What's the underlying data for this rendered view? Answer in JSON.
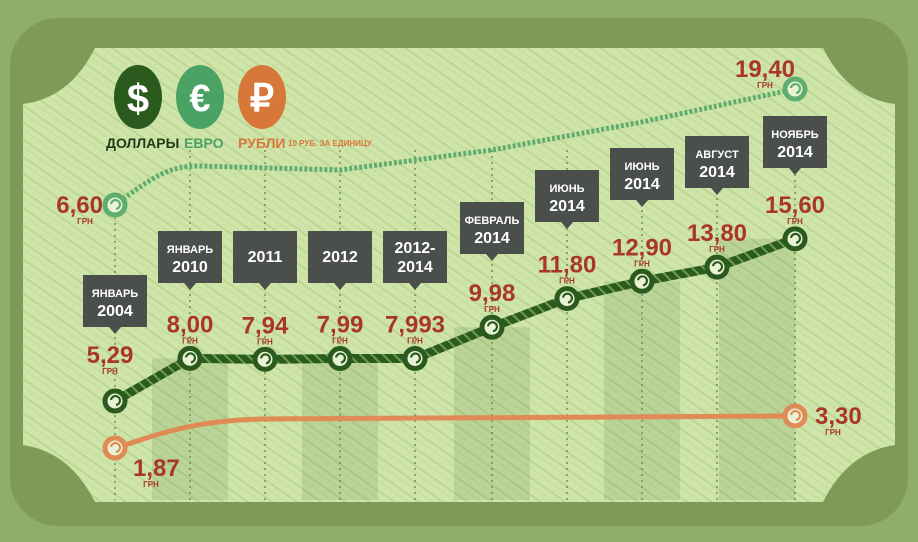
{
  "legend": {
    "dollar": {
      "symbol": "$",
      "label": "ДОЛЛАРЫ",
      "color": "#2b5a1e"
    },
    "euro": {
      "symbol": "€",
      "label": "ЕВРО",
      "color": "#4aa364"
    },
    "ruble": {
      "symbol": "₽",
      "label": "РУБЛИ",
      "note": "10 РУБ. ЗА ЕДИНИЦУ",
      "color": "#d8773a"
    }
  },
  "colors": {
    "frame": "#7e9a56",
    "paper": "#cde3a6",
    "value_text": "#a9352c",
    "tag": "#4b4f4c",
    "euro_line": "#5fae70",
    "dollar_line": "#2b5a1e",
    "ruble_line": "#e08a55"
  },
  "chart_data": {
    "type": "line",
    "categories": [
      [
        "ЯНВАРЬ",
        "2004"
      ],
      [
        "ЯНВАРЬ",
        "2010"
      ],
      [
        "2011"
      ],
      [
        "2012"
      ],
      [
        "2012-",
        "2014"
      ],
      [
        "ФЕВРАЛЬ",
        "2014"
      ],
      [
        "ИЮНЬ",
        "2014"
      ],
      [
        "ИЮНЬ",
        "2014"
      ],
      [
        "АВГУСТ",
        "2014"
      ],
      [
        "НОЯБРЬ",
        "2014"
      ]
    ],
    "unit": "ГРН",
    "series": [
      {
        "key": "dollar",
        "values": [
          5.29,
          8.0,
          7.94,
          7.99,
          7.993,
          9.98,
          11.8,
          12.9,
          13.8,
          15.6
        ],
        "labels": [
          "5,29",
          "8,00",
          "7,94",
          "7,99",
          "7,993",
          "9,98",
          "11,80",
          "12,90",
          "13,80",
          "15,60"
        ]
      },
      {
        "key": "euro",
        "values": [
          6.6,
          null,
          null,
          null,
          null,
          null,
          null,
          null,
          null,
          19.4
        ],
        "labels": [
          "6,60",
          "",
          "",
          "",
          "",
          "",
          "",
          "",
          "",
          "19,40"
        ]
      },
      {
        "key": "ruble",
        "values": [
          1.87,
          null,
          null,
          null,
          null,
          null,
          null,
          null,
          null,
          3.3
        ],
        "labels": [
          "1,87",
          "",
          "",
          "",
          "",
          "",
          "",
          "",
          "",
          "3,30"
        ]
      }
    ]
  }
}
